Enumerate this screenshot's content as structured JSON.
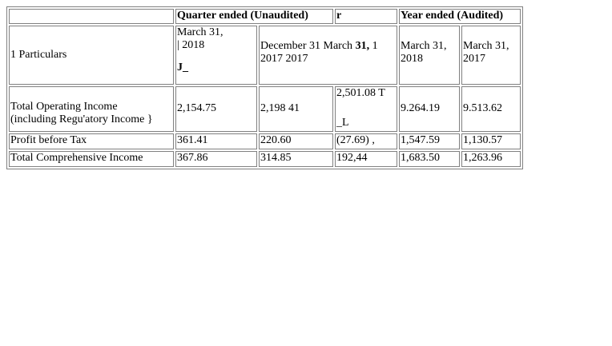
{
  "table": {
    "header_top": {
      "blank": "",
      "quarter": "Quarter ended (Unaudited)",
      "quarter_extra": "r",
      "year": "Year ended (Audited)"
    },
    "header_sub": {
      "particulars": "1 Particulars",
      "q1_line1": "March 31,",
      "q1_line2": "| 2018",
      "q1_line3": "J_",
      "q2_line1_a": "December 31 March ",
      "q2_line1_b": "31,",
      "q2_line1_c": " 1",
      "q2_line2": "2017 2017",
      "y1_line1": "March 31,",
      "y1_line2": "2018",
      "y2_line1": "March 31,",
      "y2_line2": "2017"
    },
    "rows": [
      {
        "label_line1": "Total Operating Income",
        "label_line2": "(including Regu'atory Income }",
        "q1": "2,154.75",
        "q2": "2,198 41",
        "q3_line1": "2,501.08 T",
        "q3_line2": "_L",
        "y1": "9.264.19",
        "y2": "9.513.62"
      },
      {
        "label": "Profit before Tax",
        "q1": "361.41",
        "q2": "220.60",
        "q3": "(27.69) ,",
        "y1": "1,547.59",
        "y2": "1,130.57"
      },
      {
        "label": "Total Comprehensive Income",
        "q1": "367.86",
        "q2": "314.85",
        "q3": "192,44",
        "y1": "1,683.50",
        "y2": "1,263.96"
      }
    ]
  }
}
